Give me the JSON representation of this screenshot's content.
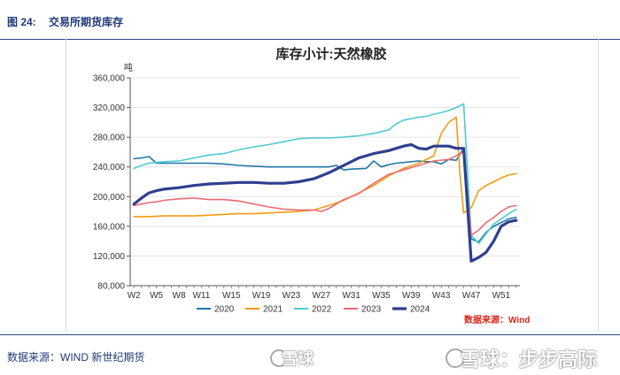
{
  "figure": {
    "number": "图 24:",
    "title": "交易所期货库存"
  },
  "footer": {
    "source": "数据来源：WIND 新世纪期货"
  },
  "watermarks": [
    "雪球",
    "雪球：步步高际"
  ],
  "colors": {
    "2020": "#1f78a8",
    "2021": "#f39c12",
    "2022": "#4ecbd1",
    "2023": "#ec6b73",
    "2024": "#2e3f8f",
    "source_note": "#d9261c",
    "header": "#1f3a78"
  },
  "chart_data": {
    "type": "line",
    "title": "库存小计:天然橡胶",
    "unit": "吨",
    "source_note": "数据来源：Wind",
    "ylim": [
      80000,
      360000
    ],
    "yticks": [
      "80,000",
      "120,000",
      "160,000",
      "200,000",
      "240,000",
      "280,000",
      "320,000",
      "360,000"
    ],
    "ytick_values": [
      80000,
      120000,
      160000,
      200000,
      240000,
      280000,
      320000,
      360000
    ],
    "x_weeks": [
      2,
      5,
      8,
      11,
      15,
      19,
      23,
      27,
      31,
      35,
      39,
      43,
      47,
      51
    ],
    "xticks": [
      "W2",
      "W5",
      "W8",
      "W11",
      "W15",
      "W19",
      "W23",
      "W27",
      "W31",
      "W35",
      "W39",
      "W43",
      "W47",
      "W51"
    ],
    "legend_position": "bottom",
    "series": [
      {
        "name": "2020",
        "x": [
          2,
          3,
          4,
          5,
          6,
          8,
          10,
          12,
          14,
          16,
          18,
          20,
          22,
          24,
          26,
          28,
          29,
          30,
          31,
          33,
          34,
          35,
          36,
          37,
          38,
          39,
          40,
          41,
          42,
          43,
          44,
          45,
          46,
          47,
          48,
          49,
          50,
          51,
          52,
          53
        ],
        "values": [
          251000,
          252000,
          254000,
          245000,
          245000,
          245000,
          245000,
          245000,
          244000,
          242000,
          241000,
          240000,
          240000,
          240000,
          240000,
          240000,
          242000,
          236000,
          237000,
          238000,
          248000,
          240000,
          243000,
          245000,
          246000,
          247000,
          248000,
          247000,
          247000,
          244000,
          250000,
          249000,
          265000,
          143000,
          139000,
          152000,
          160000,
          165000,
          170000,
          172000
        ]
      },
      {
        "name": "2021",
        "x": [
          2,
          4,
          6,
          8,
          10,
          12,
          14,
          16,
          18,
          20,
          22,
          24,
          26,
          28,
          30,
          32,
          34,
          36,
          38,
          40,
          42,
          43,
          44,
          45,
          45.5,
          46,
          47,
          48,
          49,
          50,
          51,
          52,
          53
        ],
        "values": [
          173000,
          173000,
          174000,
          174000,
          174000,
          175000,
          176000,
          177000,
          177000,
          178000,
          179000,
          180000,
          182000,
          188000,
          195000,
          205000,
          215000,
          228000,
          238000,
          245000,
          255000,
          285000,
          300000,
          307000,
          230000,
          178000,
          185000,
          208000,
          215000,
          220000,
          225000,
          229000,
          231000
        ]
      },
      {
        "name": "2022",
        "x": [
          2,
          3,
          4,
          5,
          6,
          8,
          10,
          12,
          14,
          16,
          18,
          20,
          22,
          24,
          26,
          28,
          30,
          32,
          34,
          36,
          37,
          38,
          39,
          40,
          41,
          42,
          43,
          44,
          45,
          46,
          47,
          48,
          49,
          50,
          51,
          52,
          53
        ],
        "values": [
          238000,
          242000,
          245000,
          246000,
          247000,
          248000,
          252000,
          256000,
          258000,
          263000,
          267000,
          270000,
          274000,
          278000,
          279000,
          279000,
          280000,
          282000,
          285000,
          290000,
          298000,
          303000,
          305000,
          307000,
          308000,
          311000,
          313000,
          316000,
          320000,
          325000,
          148000,
          137000,
          150000,
          163000,
          170000,
          177000,
          183000
        ]
      },
      {
        "name": "2023",
        "x": [
          2,
          3,
          4,
          5,
          6,
          8,
          10,
          12,
          14,
          16,
          18,
          20,
          22,
          24,
          26,
          27,
          28,
          30,
          32,
          34,
          36,
          38,
          40,
          42,
          44,
          45,
          46,
          47,
          48,
          49,
          50,
          51,
          52,
          53
        ],
        "values": [
          188000,
          190000,
          192000,
          193000,
          195000,
          197000,
          198000,
          196000,
          196000,
          194000,
          190000,
          186000,
          183000,
          182000,
          182000,
          180000,
          184000,
          196000,
          204000,
          218000,
          230000,
          236000,
          242000,
          248000,
          250000,
          255000,
          260000,
          148000,
          155000,
          165000,
          172000,
          180000,
          186000,
          188000
        ]
      },
      {
        "name": "2024",
        "x": [
          2,
          3,
          4,
          5,
          6,
          8,
          10,
          12,
          14,
          16,
          18,
          20,
          22,
          24,
          26,
          28,
          30,
          32,
          34,
          36,
          38,
          39,
          40,
          41,
          42,
          43,
          44,
          45,
          46,
          47,
          48,
          49,
          50,
          51,
          52,
          53
        ],
        "values": [
          190000,
          198000,
          205000,
          208000,
          210000,
          212000,
          215000,
          217000,
          218000,
          219000,
          219000,
          218000,
          218000,
          220000,
          224000,
          232000,
          242000,
          252000,
          258000,
          262000,
          268000,
          270000,
          265000,
          264000,
          268000,
          268000,
          268000,
          265000,
          265000,
          113000,
          118000,
          125000,
          140000,
          160000,
          166000,
          168000
        ]
      }
    ]
  }
}
